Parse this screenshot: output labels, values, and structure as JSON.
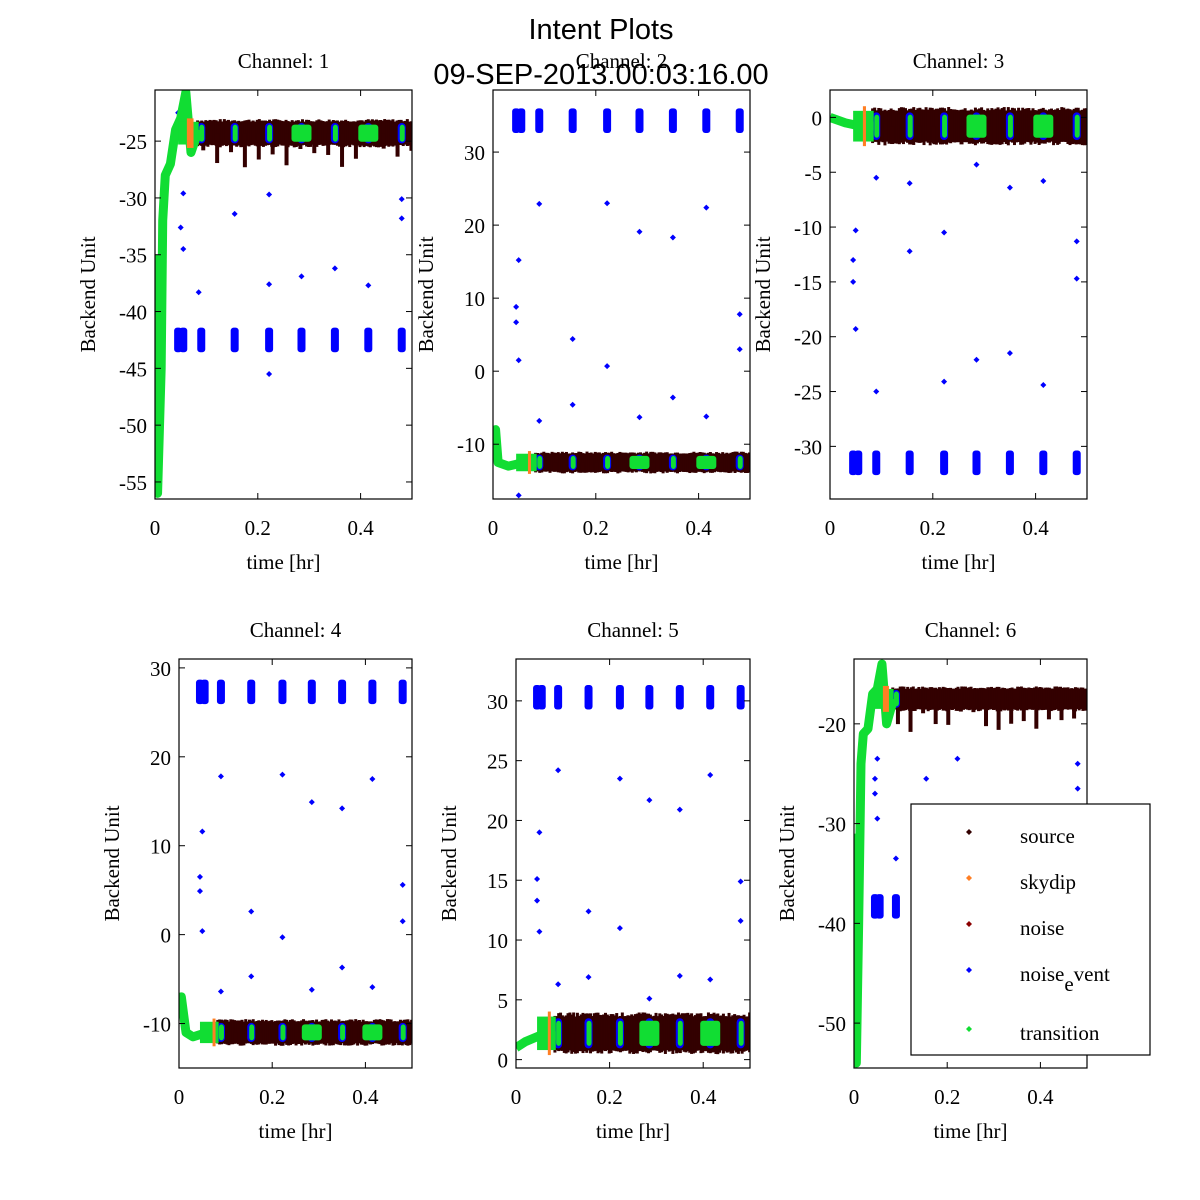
{
  "figure": {
    "title_line1": "Intent Plots",
    "title_line2": "09-SEP-2013.00:03:16.00"
  },
  "legend": {
    "location": "lower-right of Channel 6",
    "entries": [
      {
        "label": "source",
        "color": "#330000"
      },
      {
        "label": "skydip",
        "color": "#ff7f24"
      },
      {
        "label": "noise",
        "color": "#8b0000"
      },
      {
        "label": "noise",
        "sub": "e",
        "label_rest": "vent",
        "color": "#0000ff"
      },
      {
        "label": "transition",
        "color": "#11dd33"
      }
    ]
  },
  "colors": {
    "source": "#330000",
    "skydip": "#ff7f24",
    "noise": "#8b0000",
    "noise_event": "#0000ff",
    "transition": "#11dd33"
  },
  "chart_data": [
    {
      "type": "scatter",
      "title": "Channel: 1",
      "xlabel": "time [hr]",
      "ylabel": "Backend Unit",
      "xlim": [
        0,
        0.5
      ],
      "ylim": [
        -56.5,
        -20.5
      ],
      "xticks": [
        0,
        0.2,
        0.4
      ],
      "xtick_labels": [
        "0",
        "0.2",
        "0.4"
      ],
      "yticks": [
        -55,
        -50,
        -45,
        -40,
        -35,
        -30,
        -25
      ],
      "ytick_labels": [
        "-55",
        "-50",
        "-45",
        "-40",
        "-35",
        "-30",
        "-25"
      ],
      "source_band": {
        "x": [
          0.08,
          0.5
        ],
        "center": -24.3,
        "halfwidth": 1.0,
        "dips_to": -27.5
      },
      "transition_ramp": [
        [
          0,
          -35
        ],
        [
          0.005,
          -56
        ],
        [
          0.012,
          -45
        ],
        [
          0.015,
          -32
        ],
        [
          0.02,
          -28
        ],
        [
          0.03,
          -27
        ],
        [
          0.04,
          -24
        ],
        [
          0.05,
          -23
        ],
        [
          0.06,
          -20.7
        ],
        [
          0.07,
          -26
        ],
        [
          0.085,
          -24
        ]
      ],
      "skydip_x": [
        0.062,
        0.075
      ],
      "noise_event_cluster_y": -42.5,
      "noise_event_x": [
        0.045,
        0.055,
        0.09,
        0.155,
        0.222,
        0.285,
        0.35,
        0.415,
        0.48
      ],
      "noise_event_outliers": [
        [
          0.045,
          -22.5
        ],
        [
          0.05,
          -32.6
        ],
        [
          0.055,
          -29.6
        ],
        [
          0.055,
          -34.5
        ],
        [
          0.085,
          -38.3
        ],
        [
          0.155,
          -31.4
        ],
        [
          0.222,
          -37.6
        ],
        [
          0.222,
          -29.7
        ],
        [
          0.285,
          -36.9
        ],
        [
          0.35,
          -36.2
        ],
        [
          0.415,
          -37.7
        ],
        [
          0.48,
          -30.1
        ],
        [
          0.48,
          -31.8
        ],
        [
          0.222,
          -45.5
        ]
      ]
    },
    {
      "type": "scatter",
      "title": "Channel: 2",
      "xlabel": "time [hr]",
      "ylabel": "Backend Unit",
      "xlim": [
        0,
        0.5
      ],
      "ylim": [
        -17.5,
        38.5
      ],
      "xticks": [
        0,
        0.2,
        0.4
      ],
      "xtick_labels": [
        "0",
        "0.2",
        "0.4"
      ],
      "yticks": [
        -10,
        0,
        10,
        20,
        30
      ],
      "ytick_labels": [
        "-10",
        "0",
        "10",
        "20",
        "30"
      ],
      "source_band": {
        "x": [
          0.08,
          0.5
        ],
        "center": -12.5,
        "halfwidth": 1.2,
        "dips_to": -13.5
      },
      "transition_ramp": [
        [
          0,
          -10
        ],
        [
          0.005,
          -8
        ],
        [
          0.01,
          -12.5
        ],
        [
          0.03,
          -13
        ],
        [
          0.06,
          -12.5
        ],
        [
          0.085,
          -12.5
        ]
      ],
      "skydip_x": [
        0.068,
        0.07
      ],
      "noise_event_cluster_y": 34.3,
      "noise_event_x": [
        0.045,
        0.055,
        0.09,
        0.155,
        0.222,
        0.285,
        0.35,
        0.415,
        0.48
      ],
      "noise_event_outliers": [
        [
          0.045,
          8.8
        ],
        [
          0.045,
          6.7
        ],
        [
          0.05,
          15.2
        ],
        [
          0.05,
          1.5
        ],
        [
          0.09,
          22.9
        ],
        [
          0.09,
          -6.8
        ],
        [
          0.155,
          4.4
        ],
        [
          0.155,
          -4.6
        ],
        [
          0.222,
          23.0
        ],
        [
          0.222,
          0.7
        ],
        [
          0.285,
          19.1
        ],
        [
          0.285,
          -6.3
        ],
        [
          0.35,
          18.3
        ],
        [
          0.35,
          -3.6
        ],
        [
          0.415,
          22.4
        ],
        [
          0.415,
          -6.2
        ],
        [
          0.48,
          7.8
        ],
        [
          0.48,
          3.0
        ],
        [
          0.05,
          -17
        ]
      ]
    },
    {
      "type": "scatter",
      "title": "Channel: 3",
      "xlabel": "time [hr]",
      "ylabel": "Backend Unit",
      "xlim": [
        0,
        0.5
      ],
      "ylim": [
        -34.8,
        2.5
      ],
      "xticks": [
        0,
        0.2,
        0.4
      ],
      "xtick_labels": [
        "0",
        "0.2",
        "0.4"
      ],
      "yticks": [
        -30,
        -25,
        -20,
        -15,
        -10,
        -5,
        0
      ],
      "ytick_labels": [
        "-30",
        "-25",
        "-20",
        "-15",
        "-10",
        "-5",
        "0"
      ],
      "source_band": {
        "x": [
          0.08,
          0.5
        ],
        "center": -0.8,
        "halfwidth": 1.4,
        "dips_to": -2.5
      },
      "transition_ramp": [
        [
          0,
          0
        ],
        [
          0.03,
          -0.5
        ],
        [
          0.06,
          -0.8
        ],
        [
          0.085,
          -0.8
        ]
      ],
      "skydip_x": [
        0.064,
        0.07
      ],
      "noise_event_cluster_y": -31.5,
      "noise_event_x": [
        0.045,
        0.055,
        0.09,
        0.155,
        0.222,
        0.285,
        0.35,
        0.415,
        0.48
      ],
      "noise_event_outliers": [
        [
          0.045,
          -13
        ],
        [
          0.045,
          -15
        ],
        [
          0.05,
          -10.3
        ],
        [
          0.05,
          -19.3
        ],
        [
          0.09,
          -5.5
        ],
        [
          0.09,
          -25
        ],
        [
          0.155,
          -6
        ],
        [
          0.155,
          -12.2
        ],
        [
          0.222,
          -10.5
        ],
        [
          0.222,
          -24.1
        ],
        [
          0.285,
          -4.3
        ],
        [
          0.285,
          -22.1
        ],
        [
          0.35,
          -6.4
        ],
        [
          0.35,
          -21.5
        ],
        [
          0.415,
          -5.8
        ],
        [
          0.415,
          -24.4
        ],
        [
          0.48,
          -11.3
        ],
        [
          0.48,
          -14.7
        ]
      ]
    },
    {
      "type": "scatter",
      "title": "Channel: 4",
      "xlabel": "time [hr]",
      "ylabel": "Backend Unit",
      "xlim": [
        0,
        0.5
      ],
      "ylim": [
        -15,
        31
      ],
      "xticks": [
        0,
        0.2,
        0.4
      ],
      "xtick_labels": [
        "0",
        "0.2",
        "0.4"
      ],
      "yticks": [
        -10,
        0,
        10,
        20,
        30
      ],
      "ytick_labels": [
        "-10",
        "0",
        "10",
        "20",
        "30"
      ],
      "source_band": {
        "x": [
          0.08,
          0.5
        ],
        "center": -11,
        "halfwidth": 1.2,
        "dips_to": -12
      },
      "transition_ramp": [
        [
          0,
          -9
        ],
        [
          0.005,
          -7
        ],
        [
          0.015,
          -11
        ],
        [
          0.03,
          -11.5
        ],
        [
          0.06,
          -11
        ],
        [
          0.085,
          -11
        ]
      ],
      "skydip_x": [
        0.072,
        0.074
      ],
      "noise_event_cluster_y": 27.3,
      "noise_event_x": [
        0.045,
        0.055,
        0.09,
        0.155,
        0.222,
        0.285,
        0.35,
        0.415,
        0.48
      ],
      "noise_event_outliers": [
        [
          0.045,
          6.5
        ],
        [
          0.045,
          4.9
        ],
        [
          0.05,
          11.6
        ],
        [
          0.05,
          0.4
        ],
        [
          0.09,
          17.8
        ],
        [
          0.09,
          -6.4
        ],
        [
          0.155,
          2.6
        ],
        [
          0.155,
          -4.7
        ],
        [
          0.222,
          18.0
        ],
        [
          0.222,
          -0.3
        ],
        [
          0.285,
          14.9
        ],
        [
          0.285,
          -6.2
        ],
        [
          0.35,
          14.2
        ],
        [
          0.35,
          -3.7
        ],
        [
          0.415,
          17.5
        ],
        [
          0.415,
          -5.9
        ],
        [
          0.48,
          5.6
        ],
        [
          0.48,
          1.5
        ]
      ]
    },
    {
      "type": "scatter",
      "title": "Channel: 5",
      "xlabel": "time [hr]",
      "ylabel": "Backend Unit",
      "xlim": [
        0,
        0.5
      ],
      "ylim": [
        -0.7,
        33.5
      ],
      "xticks": [
        0,
        0.2,
        0.4
      ],
      "xtick_labels": [
        "0",
        "0.2",
        "0.4"
      ],
      "yticks": [
        0,
        5,
        10,
        15,
        20,
        25,
        30
      ],
      "ytick_labels": [
        "0",
        "5",
        "10",
        "15",
        "20",
        "25",
        "30"
      ],
      "source_band": {
        "x": [
          0.08,
          0.5
        ],
        "center": 2.2,
        "halfwidth": 1.4,
        "dips_to": 0.8
      },
      "transition_ramp": [
        [
          0,
          1
        ],
        [
          0.02,
          1.5
        ],
        [
          0.05,
          2
        ],
        [
          0.085,
          2
        ]
      ],
      "skydip_x": [
        0.068,
        0.072
      ],
      "noise_event_cluster_y": 30.3,
      "noise_event_x": [
        0.045,
        0.055,
        0.09,
        0.155,
        0.222,
        0.285,
        0.35,
        0.415,
        0.48
      ],
      "noise_event_outliers": [
        [
          0.045,
          15.1
        ],
        [
          0.045,
          13.3
        ],
        [
          0.05,
          19.0
        ],
        [
          0.05,
          10.7
        ],
        [
          0.09,
          24.2
        ],
        [
          0.09,
          6.3
        ],
        [
          0.155,
          12.4
        ],
        [
          0.155,
          6.9
        ],
        [
          0.222,
          23.5
        ],
        [
          0.222,
          11.0
        ],
        [
          0.285,
          21.7
        ],
        [
          0.285,
          5.1
        ],
        [
          0.35,
          20.9
        ],
        [
          0.35,
          7.0
        ],
        [
          0.415,
          23.8
        ],
        [
          0.415,
          6.7
        ],
        [
          0.48,
          14.9
        ],
        [
          0.48,
          11.6
        ]
      ]
    },
    {
      "type": "scatter",
      "title": "Channel: 6",
      "xlabel": "time [hr]",
      "ylabel": "Backend Unit",
      "xlim": [
        0,
        0.5
      ],
      "ylim": [
        -54.5,
        -13.5
      ],
      "xticks": [
        0,
        0.2,
        0.4
      ],
      "xtick_labels": [
        "0",
        "0.2",
        "0.4"
      ],
      "yticks": [
        -50,
        -40,
        -30,
        -20
      ],
      "ytick_labels": [
        "-50",
        "-40",
        "-30",
        "-20"
      ],
      "source_band": {
        "x": [
          0.08,
          0.5
        ],
        "center": -17.5,
        "halfwidth": 1.0,
        "dips_to": -21
      },
      "transition_ramp": [
        [
          0,
          -31
        ],
        [
          0.005,
          -54
        ],
        [
          0.01,
          -40
        ],
        [
          0.015,
          -24
        ],
        [
          0.02,
          -21
        ],
        [
          0.03,
          -20.5
        ],
        [
          0.04,
          -17
        ],
        [
          0.05,
          -16.5
        ],
        [
          0.06,
          -14
        ],
        [
          0.07,
          -20
        ],
        [
          0.085,
          -17.5
        ]
      ],
      "skydip_x": [
        0.062,
        0.075
      ],
      "noise_event_cluster_y": -38.3,
      "noise_event_x": [
        0.045,
        0.055,
        0.09
      ],
      "noise_event_outliers": [
        [
          0.045,
          -27
        ],
        [
          0.045,
          -25.5
        ],
        [
          0.05,
          -23.5
        ],
        [
          0.05,
          -29.5
        ],
        [
          0.09,
          -33.5
        ],
        [
          0.155,
          -25.5
        ],
        [
          0.222,
          -23.5
        ],
        [
          0.48,
          -26.5
        ],
        [
          0.48,
          -24
        ]
      ]
    }
  ]
}
